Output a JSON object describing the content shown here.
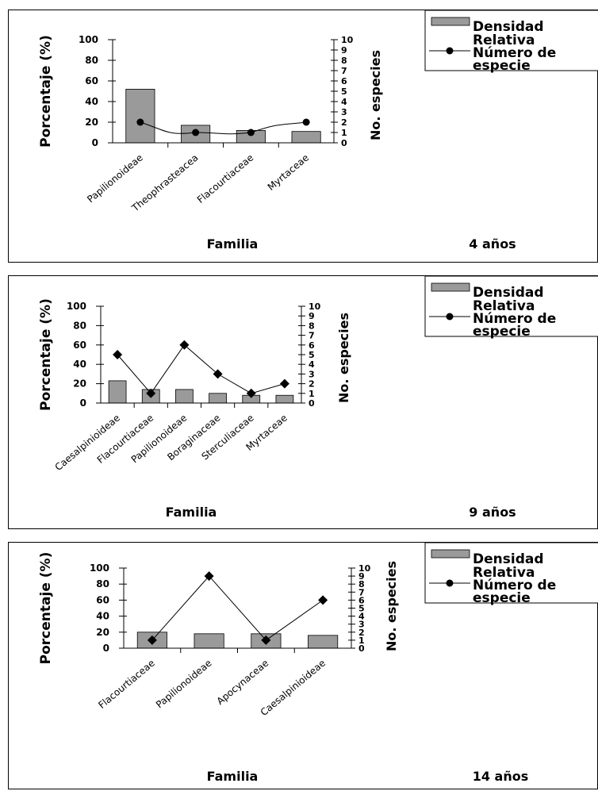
{
  "legend": {
    "bar_label_line1": "Densidad",
    "bar_label_line2": "Relativa",
    "line_label_line1": "Número de",
    "line_label_line2": "especie"
  },
  "colors": {
    "bar": "#9a9a9a",
    "line": "#000000"
  },
  "chart_data": [
    {
      "type": "bar",
      "categories": [
        "Papilionoideae",
        "Theophrasteacea",
        "Flacourtiaceae",
        "Myrtaceae"
      ],
      "series": [
        {
          "name": "Densidad Relativa",
          "type": "bar",
          "axis": "left",
          "values": [
            52,
            17,
            12,
            11
          ]
        },
        {
          "name": "Número de especie",
          "type": "line",
          "axis": "right",
          "marker": "circle",
          "values": [
            2,
            1,
            1,
            2
          ]
        }
      ],
      "ylabel": "Porcentaje (%)",
      "y2label": "No. especies",
      "xlabel": "Familia",
      "ylim": [
        0,
        100
      ],
      "y2lim": [
        0,
        10
      ],
      "yticks": [
        "0",
        "20",
        "40",
        "60",
        "80",
        "100"
      ],
      "y2ticks": [
        "0",
        "1",
        "2",
        "3",
        "4",
        "5",
        "6",
        "7",
        "8",
        "9",
        "10"
      ],
      "age_label": "4 años",
      "legend_position": "top-right"
    },
    {
      "type": "bar",
      "categories": [
        "Caesalpinioideae",
        "Flacourtiaceae",
        "Papilionoideae",
        "Boraginaceae",
        "Sterculiaceae",
        "Myrtaceae"
      ],
      "series": [
        {
          "name": "Densidad Relativa",
          "type": "bar",
          "axis": "left",
          "values": [
            23,
            14,
            14,
            10,
            8,
            8
          ]
        },
        {
          "name": "Número de especie",
          "type": "line",
          "axis": "right",
          "marker": "diamond",
          "values": [
            5,
            1,
            6,
            3,
            1,
            2
          ]
        }
      ],
      "ylabel": "Porcentaje (%)",
      "y2label": "No. especies",
      "xlabel": "Familia",
      "ylim": [
        0,
        100
      ],
      "y2lim": [
        0,
        10
      ],
      "yticks": [
        "0",
        "20",
        "40",
        "60",
        "80",
        "100"
      ],
      "y2ticks": [
        "0",
        "1",
        "2",
        "3",
        "4",
        "5",
        "6",
        "7",
        "8",
        "9",
        "10"
      ],
      "age_label": "9 años",
      "legend_position": "top-right"
    },
    {
      "type": "bar",
      "categories": [
        "Flacourtiaceae",
        "Papilionoideae",
        "Apocynaceae",
        "Caesalpinioideae"
      ],
      "series": [
        {
          "name": "Densidad Relativa",
          "type": "bar",
          "axis": "left",
          "values": [
            20,
            18,
            18,
            16
          ]
        },
        {
          "name": "Número de especie",
          "type": "line",
          "axis": "right",
          "marker": "diamond",
          "values": [
            1,
            9,
            1,
            6
          ]
        }
      ],
      "ylabel": "Porcentaje (%)",
      "y2label": "No. especies",
      "xlabel": "Familia",
      "ylim": [
        0,
        100
      ],
      "y2lim": [
        0,
        10
      ],
      "yticks": [
        "0",
        "20",
        "40",
        "60",
        "80",
        "100"
      ],
      "y2ticks": [
        "0",
        "1",
        "2",
        "3",
        "4",
        "5",
        "6",
        "7",
        "8",
        "9",
        "10"
      ],
      "age_label": "14 años",
      "legend_position": "top-right"
    }
  ]
}
